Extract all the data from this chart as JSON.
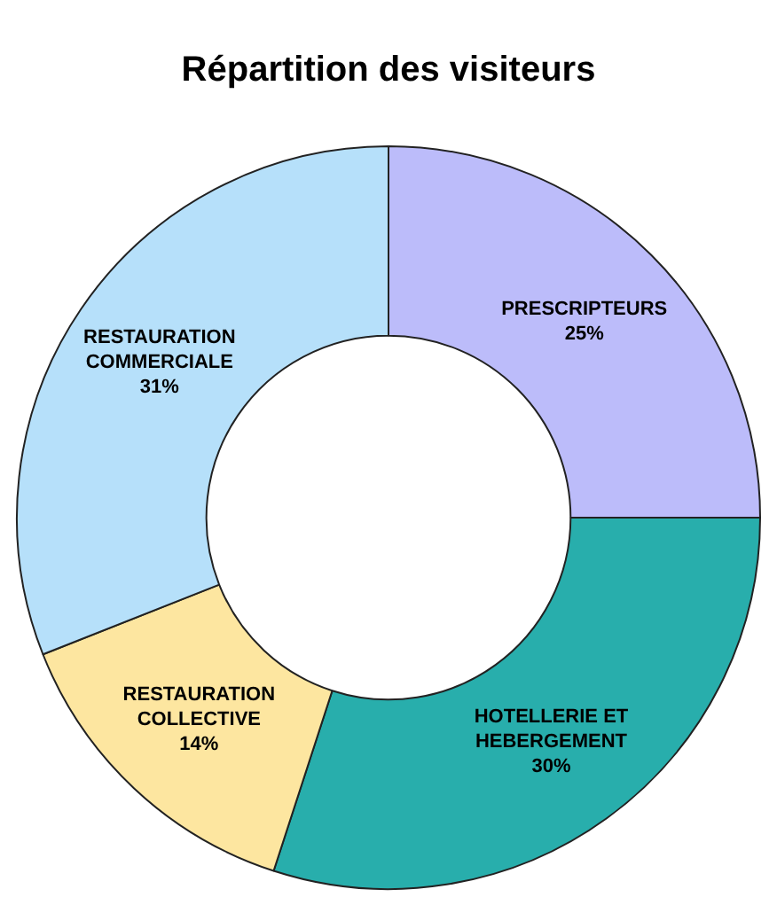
{
  "chart_data": {
    "type": "donut",
    "title": "Répartition des visiteurs",
    "categories": [
      "PRESCRIPTEURS",
      "HOTELLERIE ET HEBERGEMENT",
      "RESTAURATION COLLECTIVE",
      "RESTAURATION COMMERCIALE"
    ],
    "values": [
      25,
      30,
      14,
      31
    ],
    "colors": [
      "#bcbcfa",
      "#28aeac",
      "#fde6a0",
      "#b6e0fa"
    ],
    "value_labels": [
      "25%",
      "30%",
      "14%",
      "31%"
    ],
    "legend": false
  }
}
